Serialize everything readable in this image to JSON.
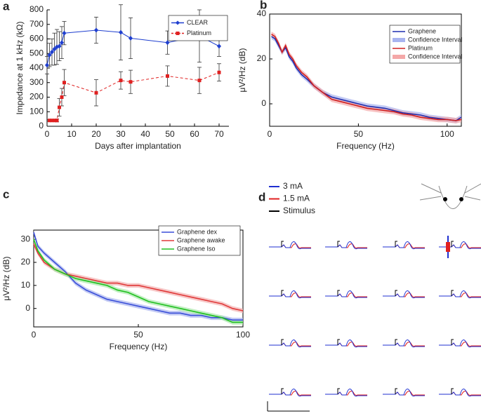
{
  "chart_data": [
    {
      "type": "line",
      "panel": "a",
      "xlabel": "Days after implantation",
      "ylabel": "Impedance at 1 kHz (kΩ)",
      "xlim": [
        0,
        74
      ],
      "ylim": [
        0,
        800
      ],
      "xticks": [
        0,
        10,
        20,
        30,
        40,
        50,
        60,
        70
      ],
      "yticks": [
        0,
        100,
        200,
        300,
        400,
        500,
        600,
        700,
        800
      ],
      "legend": "upper right",
      "series": [
        {
          "name": "CLEAR",
          "color": "#1f3fcf",
          "marker": "diamond",
          "dash": false,
          "x": [
            0,
            1,
            2,
            3,
            4,
            5,
            6,
            7,
            20,
            30,
            34,
            49,
            62,
            70
          ],
          "values": [
            420,
            490,
            510,
            530,
            545,
            550,
            575,
            640,
            660,
            645,
            605,
            575,
            620,
            550
          ],
          "errors": [
            60,
            80,
            90,
            110,
            120,
            100,
            110,
            80,
            90,
            190,
            140,
            80,
            180,
            70
          ]
        },
        {
          "name": "Platinum",
          "color": "#e02020",
          "marker": "square",
          "dash": true,
          "x": [
            1,
            2,
            3,
            4,
            5,
            6,
            7,
            20,
            30,
            34,
            49,
            62,
            70
          ],
          "values": [
            40,
            40,
            40,
            40,
            130,
            200,
            300,
            230,
            315,
            305,
            345,
            315,
            370
          ],
          "errors": [
            5,
            5,
            5,
            10,
            60,
            60,
            90,
            90,
            60,
            80,
            70,
            90,
            60
          ]
        }
      ]
    },
    {
      "type": "line",
      "panel": "b",
      "xlabel": "Frequency (Hz)",
      "ylabel": "μV²/Hz (dB)",
      "xlim": [
        0,
        108
      ],
      "ylim": [
        -10,
        40
      ],
      "xticks": [
        0,
        50,
        100
      ],
      "yticks": [
        0,
        20,
        40
      ],
      "legend": "upper right",
      "series": [
        {
          "name": "Graphene",
          "ci_name": "Confidence Interval",
          "color": "#1f2fb0",
          "ci_color": "#a8b4f0",
          "ci": 1.2,
          "x": [
            1,
            3,
            5,
            7,
            9,
            11,
            13,
            15,
            18,
            21,
            25,
            30,
            35,
            40,
            45,
            50,
            55,
            60,
            65,
            70,
            75,
            80,
            85,
            90,
            95,
            100,
            105,
            108
          ],
          "values": [
            30,
            29,
            26,
            23,
            25,
            21,
            19,
            16,
            13,
            11,
            8,
            5,
            3,
            2,
            1,
            0,
            -1,
            -1.5,
            -2,
            -3,
            -4,
            -4.5,
            -5,
            -6,
            -6.5,
            -7,
            -7.5,
            -6
          ]
        },
        {
          "name": "Platinum",
          "ci_name": "Confidence Interval",
          "color": "#d02020",
          "ci_color": "#f4a8a8",
          "ci": 1.2,
          "x": [
            1,
            3,
            5,
            7,
            9,
            11,
            13,
            15,
            18,
            21,
            25,
            30,
            35,
            40,
            45,
            50,
            55,
            60,
            65,
            70,
            75,
            80,
            85,
            90,
            95,
            100,
            105,
            108
          ],
          "values": [
            31,
            30,
            27,
            23,
            26,
            22,
            20,
            17,
            14,
            12,
            8,
            5,
            2,
            1,
            0,
            -1,
            -2,
            -2.5,
            -3,
            -3.5,
            -4.5,
            -5,
            -6,
            -6.5,
            -7,
            -7,
            -7.5,
            -7
          ]
        }
      ]
    },
    {
      "type": "line",
      "panel": "c",
      "xlabel": "Frequency (Hz)",
      "ylabel": "μV²/Hz (dB)",
      "xlim": [
        0,
        100
      ],
      "ylim": [
        -8,
        34
      ],
      "xticks": [
        0,
        50,
        100
      ],
      "yticks": [
        0,
        10,
        20,
        30
      ],
      "legend": "upper right",
      "series": [
        {
          "name": "Graphene dex",
          "color": "#3a4fd8",
          "ci_color": "#aab4f0",
          "ci": 1,
          "x": [
            0,
            2,
            5,
            10,
            15,
            20,
            25,
            30,
            35,
            40,
            45,
            50,
            55,
            60,
            65,
            70,
            75,
            80,
            85,
            90,
            95,
            100
          ],
          "values": [
            33,
            27,
            24,
            20,
            16,
            11,
            8,
            6,
            4,
            3,
            2,
            1,
            0,
            -1,
            -2,
            -2,
            -3,
            -3,
            -4,
            -4,
            -5,
            -5
          ]
        },
        {
          "name": "Graphene awake",
          "color": "#e03a3a",
          "ci_color": "#f4b0b0",
          "ci": 1,
          "x": [
            0,
            2,
            5,
            10,
            15,
            20,
            25,
            30,
            35,
            40,
            45,
            50,
            55,
            60,
            65,
            70,
            75,
            80,
            85,
            90,
            95,
            100
          ],
          "values": [
            28,
            24,
            20,
            17,
            15,
            14,
            13,
            12,
            11,
            11,
            10,
            10,
            9,
            8,
            7,
            6,
            5,
            4,
            3,
            2,
            0,
            -1
          ]
        },
        {
          "name": "Graphene Iso",
          "color": "#20c020",
          "ci_color": "#a8e8a8",
          "ci": 1,
          "x": [
            0,
            2,
            5,
            10,
            15,
            20,
            25,
            30,
            35,
            40,
            45,
            50,
            55,
            60,
            65,
            70,
            75,
            80,
            85,
            90,
            95,
            100
          ],
          "values": [
            30,
            25,
            21,
            17,
            15,
            13,
            12,
            11,
            10,
            8,
            7,
            5,
            3,
            2,
            1,
            0,
            -1,
            -2,
            -3,
            -4,
            -6,
            -6
          ]
        }
      ]
    }
  ],
  "panel_d": {
    "panel": "d",
    "legend": [
      {
        "name": "3 mA",
        "color": "#1f2fd0"
      },
      {
        "name": "1.5 mA",
        "color": "#e02020"
      },
      {
        "name": "Stimulus",
        "color": "#000000"
      }
    ]
  }
}
